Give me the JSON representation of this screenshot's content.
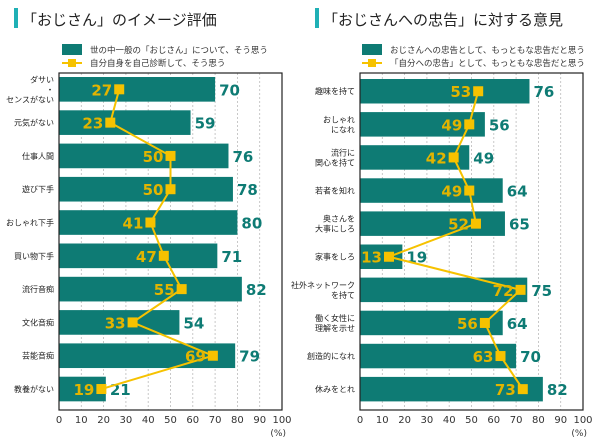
{
  "colors": {
    "bar": "#0e7b74",
    "line": "#f6c200",
    "line_label": "#e2b400",
    "bar_label": "#0e7b74",
    "accent": "#1fb0b5"
  },
  "chart_data": [
    {
      "type": "bar+line",
      "title": "「おじさん」のイメージ評価",
      "categories": [
        "ダサい\n・\nセンスがない",
        "元気がない",
        "仕事人間",
        "遊び下手",
        "おしゃれ下手",
        "買い物下手",
        "流行音痴",
        "文化音痴",
        "芸能音痴",
        "教養がない"
      ],
      "series": [
        {
          "name": "世の中一般の「おじさん」について、そう思う",
          "type": "bar",
          "values": [
            70,
            59,
            76,
            78,
            80,
            71,
            82,
            54,
            79,
            21
          ]
        },
        {
          "name": "自分自身を自己診断して、そう思う",
          "type": "line",
          "values": [
            27,
            23,
            50,
            50,
            41,
            47,
            55,
            33,
            69,
            19
          ]
        }
      ],
      "xlim": [
        0,
        100
      ],
      "xticks": [
        "0",
        "10",
        "20",
        "30",
        "40",
        "50",
        "60",
        "70",
        "80",
        "90",
        "100"
      ],
      "xunit": "(%)",
      "grid": true,
      "legend": "top"
    },
    {
      "type": "bar+line",
      "title": "「おじさんへの忠告」に対する意見",
      "categories": [
        "趣味を持て",
        "おしゃれ\nになれ",
        "流行に\n関心を持て",
        "若者を知れ",
        "奥さんを\n大事にしろ",
        "家事をしろ",
        "社外ネットワーク\nを持て",
        "働く女性に\n理解を示せ",
        "創造的になれ",
        "休みをとれ"
      ],
      "series": [
        {
          "name": "おじさんへの忠告として、もっともな忠告だと思う",
          "type": "bar",
          "values": [
            76,
            56,
            49,
            64,
            65,
            19,
            75,
            64,
            70,
            82
          ]
        },
        {
          "name": "「自分への忠告」として、もっともな忠告だと思う",
          "type": "line",
          "values": [
            53,
            49,
            42,
            49,
            52,
            13,
            72,
            56,
            63,
            73
          ]
        }
      ],
      "xlim": [
        0,
        100
      ],
      "xticks": [
        "0",
        "10",
        "20",
        "30",
        "40",
        "50",
        "60",
        "70",
        "80",
        "90",
        "100"
      ],
      "xunit": "(%)",
      "grid": true,
      "legend": "top"
    }
  ]
}
